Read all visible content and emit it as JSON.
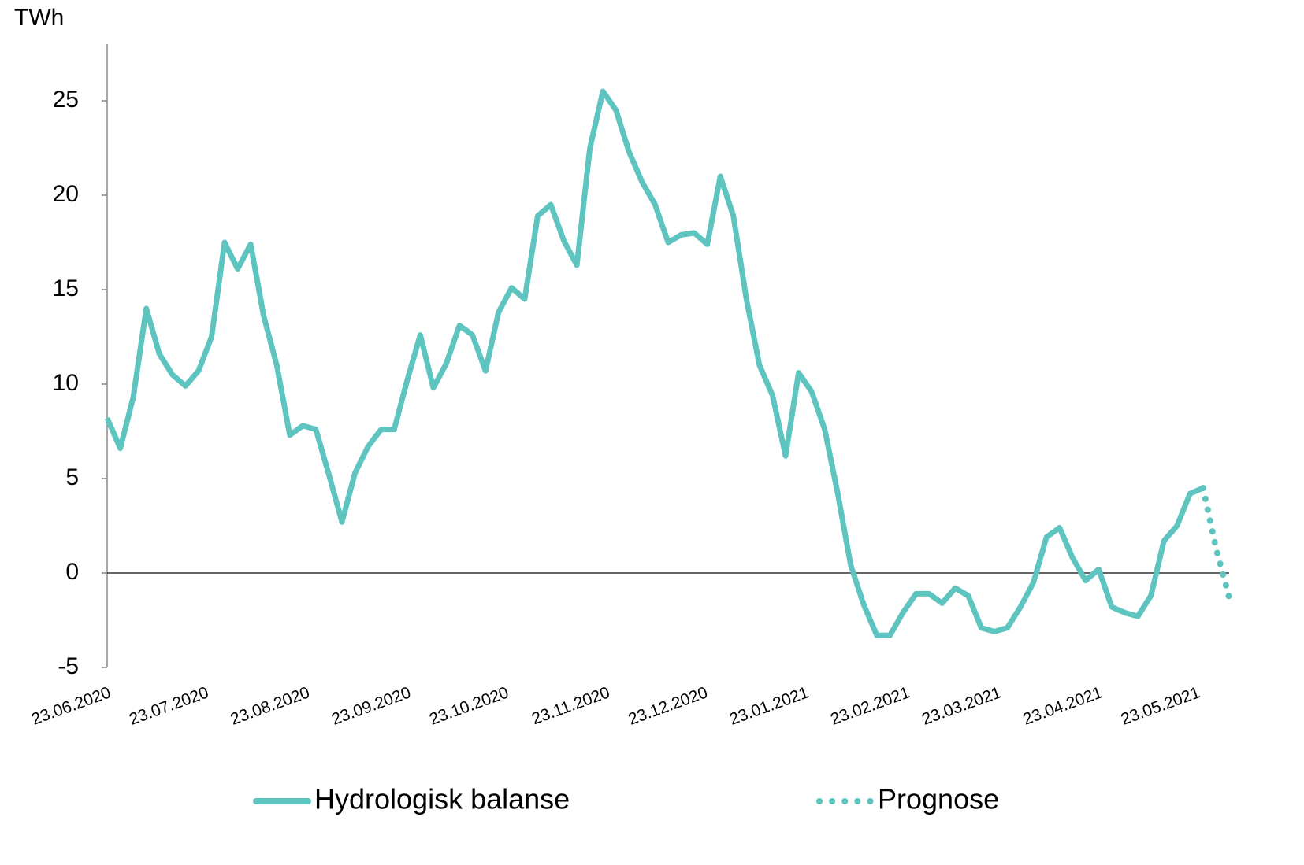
{
  "chart_data": {
    "type": "line",
    "y_label": "TWh",
    "x": [
      "23.06.2020",
      "27.06.2020",
      "01.07.2020",
      "05.07.2020",
      "09.07.2020",
      "13.07.2020",
      "17.07.2020",
      "21.07.2020",
      "25.07.2020",
      "29.07.2020",
      "02.08.2020",
      "06.08.2020",
      "10.08.2020",
      "14.08.2020",
      "18.08.2020",
      "22.08.2020",
      "26.08.2020",
      "30.08.2020",
      "03.09.2020",
      "07.09.2020",
      "11.09.2020",
      "15.09.2020",
      "19.09.2020",
      "23.09.2020",
      "27.09.2020",
      "01.10.2020",
      "05.10.2020",
      "09.10.2020",
      "13.10.2020",
      "17.10.2020",
      "21.10.2020",
      "25.10.2020",
      "29.10.2020",
      "02.11.2020",
      "06.11.2020",
      "10.11.2020",
      "14.11.2020",
      "18.11.2020",
      "22.11.2020",
      "26.11.2020",
      "30.11.2020",
      "04.12.2020",
      "08.12.2020",
      "12.12.2020",
      "16.12.2020",
      "20.12.2020",
      "24.12.2020",
      "28.12.2020",
      "01.01.2021",
      "05.01.2021",
      "09.01.2021",
      "13.01.2021",
      "17.01.2021",
      "21.01.2021",
      "25.01.2021",
      "29.01.2021",
      "02.02.2021",
      "06.02.2021",
      "10.02.2021",
      "14.02.2021",
      "18.02.2021",
      "22.02.2021",
      "26.02.2021",
      "02.03.2021",
      "06.03.2021",
      "10.03.2021",
      "14.03.2021",
      "18.03.2021",
      "22.03.2021",
      "26.03.2021",
      "30.03.2021",
      "03.04.2021",
      "07.04.2021",
      "11.04.2021",
      "15.04.2021",
      "19.04.2021",
      "23.04.2021",
      "27.04.2021",
      "01.05.2021",
      "05.05.2021",
      "09.05.2021",
      "13.05.2021",
      "17.05.2021",
      "21.05.2021",
      "25.05.2021",
      "29.05.2021",
      "02.06.2021"
    ],
    "series": [
      {
        "name": "Hydrologisk balanse",
        "color": "#5ec4bf",
        "style": "solid",
        "values": [
          8.2,
          6.6,
          9.3,
          14,
          11.6,
          10.5,
          9.9,
          10.7,
          12.5,
          17.5,
          16.1,
          17.4,
          13.6,
          11,
          7.3,
          7.8,
          7.6,
          5.2,
          2.7,
          5.3,
          6.7,
          7.6,
          7.6,
          10.2,
          12.6,
          9.8,
          11.1,
          13.1,
          12.6,
          10.7,
          13.8,
          15.1,
          14.5,
          18.9,
          19.5,
          17.6,
          16.3,
          22.5,
          25.5,
          24.5,
          22.3,
          20.7,
          19.5,
          17.5,
          17.9,
          18,
          17.4,
          21,
          18.9,
          14.5,
          11,
          9.4,
          6.2,
          10.6,
          9.6,
          7.6,
          4.2,
          0.4,
          -1.7,
          -3.3,
          -3.3,
          -2.1,
          -1.1,
          -1.1,
          -1.6,
          -0.8,
          -1.2,
          -2.9,
          -3.1,
          -2.9,
          -1.8,
          -0.5,
          1.9,
          2.4,
          0.8,
          -0.4,
          0.2,
          -1.8,
          -2.1,
          -2.3,
          -1.2,
          1.7,
          2.5,
          4.2,
          4.5,
          null,
          null
        ]
      },
      {
        "name": "Prognose",
        "color": "#5ec4bf",
        "style": "dotted",
        "values": [
          null,
          null,
          null,
          null,
          null,
          null,
          null,
          null,
          null,
          null,
          null,
          null,
          null,
          null,
          null,
          null,
          null,
          null,
          null,
          null,
          null,
          null,
          null,
          null,
          null,
          null,
          null,
          null,
          null,
          null,
          null,
          null,
          null,
          null,
          null,
          null,
          null,
          null,
          null,
          null,
          null,
          null,
          null,
          null,
          null,
          null,
          null,
          null,
          null,
          null,
          null,
          null,
          null,
          null,
          null,
          null,
          null,
          null,
          null,
          null,
          null,
          null,
          null,
          null,
          null,
          null,
          null,
          null,
          null,
          null,
          null,
          null,
          null,
          null,
          null,
          null,
          null,
          null,
          null,
          null,
          null,
          null,
          null,
          null,
          4.5,
          1.3,
          -1.3
        ]
      }
    ],
    "xlim": [
      "23.06.2020",
      "02.06.2021"
    ],
    "xticks": [
      "23.06.2020",
      "23.07.2020",
      "23.08.2020",
      "23.09.2020",
      "23.10.2020",
      "23.11.2020",
      "23.12.2020",
      "23.01.2021",
      "23.02.2021",
      "23.03.2021",
      "23.04.2021",
      "23.05.2021"
    ],
    "ylim": [
      -5,
      28
    ],
    "yticks": [
      -5,
      0,
      5,
      10,
      15,
      20,
      25
    ],
    "grid": false,
    "legend": "bottom"
  }
}
